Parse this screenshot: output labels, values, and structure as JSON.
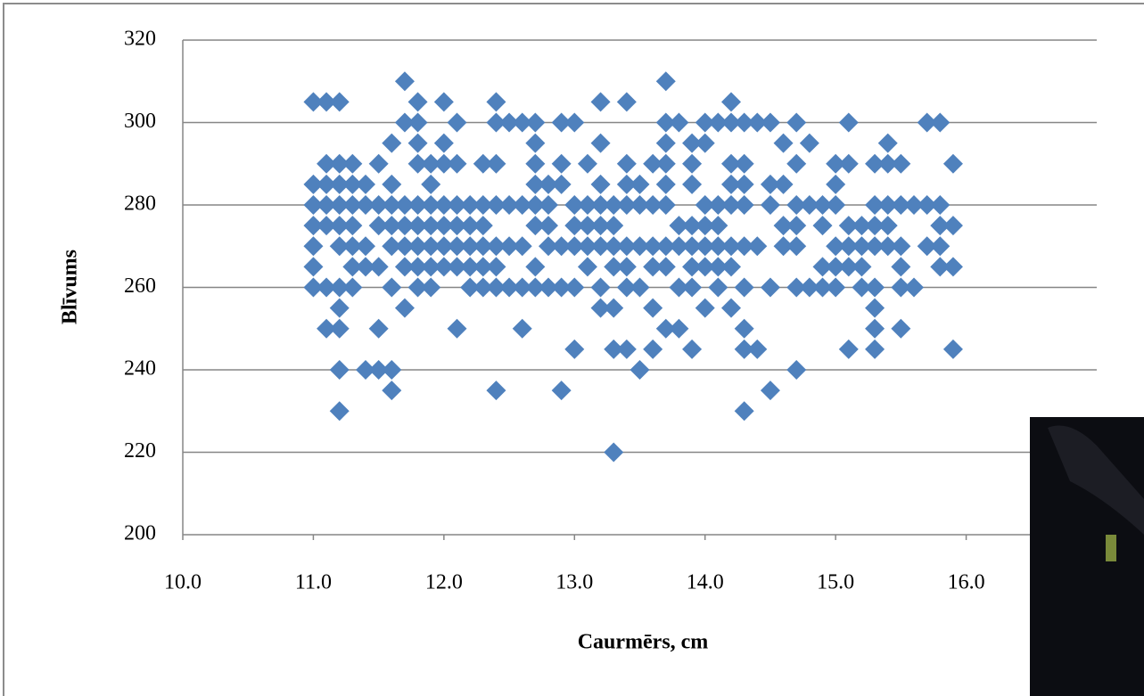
{
  "chart_data": {
    "type": "scatter",
    "x_label": "Caurmērs, cm",
    "y_label": "Blīvums",
    "color": "#4f81bd",
    "grid": true,
    "xlim": [
      10,
      17
    ],
    "ylim": [
      200,
      320
    ],
    "xticks": [
      {
        "value": 10,
        "label": "10.0"
      },
      {
        "value": 11,
        "label": "11.0"
      },
      {
        "value": 12,
        "label": "12.0"
      },
      {
        "value": 13,
        "label": "13.0"
      },
      {
        "value": 14,
        "label": "14.0"
      },
      {
        "value": 15,
        "label": "15.0"
      },
      {
        "value": 16,
        "label": "16.0"
      }
    ],
    "yticks": [
      200,
      220,
      240,
      260,
      280,
      300,
      320
    ],
    "x": [
      11,
      11,
      11,
      11,
      11,
      11,
      11,
      11.1,
      11.1,
      11.1,
      11.1,
      11.1,
      11.1,
      11.1,
      11.2,
      11.2,
      11.2,
      11.2,
      11.2,
      11.2,
      11.2,
      11.2,
      11.2,
      11.2,
      11.2,
      11.3,
      11.3,
      11.3,
      11.3,
      11.3,
      11.3,
      11.3,
      11.4,
      11.4,
      11.4,
      11.4,
      11.4,
      11.5,
      11.5,
      11.5,
      11.5,
      11.5,
      11.5,
      11.6,
      11.6,
      11.6,
      11.6,
      11.6,
      11.6,
      11.6,
      11.6,
      11.7,
      11.7,
      11.7,
      11.7,
      11.7,
      11.7,
      11.7,
      11.8,
      11.8,
      11.8,
      11.8,
      11.8,
      11.8,
      11.8,
      11.8,
      11.8,
      11.9,
      11.9,
      11.9,
      11.9,
      11.9,
      11.9,
      11.9,
      12,
      12,
      12,
      12,
      12,
      12,
      12,
      12.1,
      12.1,
      12.1,
      12.1,
      12.1,
      12.1,
      12.1,
      12.2,
      12.2,
      12.2,
      12.2,
      12.2,
      12.3,
      12.3,
      12.3,
      12.3,
      12.3,
      12.3,
      12.4,
      12.4,
      12.4,
      12.4,
      12.4,
      12.4,
      12.4,
      12.4,
      12.5,
      12.5,
      12.5,
      12.5,
      12.6,
      12.6,
      12.6,
      12.6,
      12.6,
      12.7,
      12.7,
      12.7,
      12.7,
      12.7,
      12.7,
      12.7,
      12.7,
      12.8,
      12.8,
      12.8,
      12.8,
      12.8,
      12.9,
      12.9,
      12.9,
      12.9,
      12.9,
      12.9,
      13,
      13,
      13,
      13,
      13,
      13,
      13.1,
      13.1,
      13.1,
      13.1,
      13.1,
      13.2,
      13.2,
      13.2,
      13.2,
      13.2,
      13.2,
      13.2,
      13.2,
      13.3,
      13.3,
      13.3,
      13.3,
      13.3,
      13.3,
      13.3,
      13.4,
      13.4,
      13.4,
      13.4,
      13.4,
      13.4,
      13.4,
      13.4,
      13.5,
      13.5,
      13.5,
      13.5,
      13.5,
      13.6,
      13.6,
      13.6,
      13.6,
      13.6,
      13.6,
      13.7,
      13.7,
      13.7,
      13.7,
      13.7,
      13.7,
      13.7,
      13.7,
      13.7,
      13.8,
      13.8,
      13.8,
      13.8,
      13.8,
      13.9,
      13.9,
      13.9,
      13.9,
      13.9,
      13.9,
      13.9,
      13.9,
      14,
      14,
      14,
      14,
      14,
      14,
      14,
      14.1,
      14.1,
      14.1,
      14.1,
      14.1,
      14.1,
      14.2,
      14.2,
      14.2,
      14.2,
      14.2,
      14.2,
      14.2,
      14.2,
      14.3,
      14.3,
      14.3,
      14.3,
      14.3,
      14.3,
      14.3,
      14.3,
      14.3,
      14.4,
      14.4,
      14.4,
      14.5,
      14.5,
      14.5,
      14.5,
      14.5,
      14.6,
      14.6,
      14.6,
      14.6,
      14.7,
      14.7,
      14.7,
      14.7,
      14.7,
      14.7,
      14.7,
      14.8,
      14.8,
      14.8,
      14.9,
      14.9,
      14.9,
      14.9,
      15,
      15,
      15,
      15,
      15,
      15,
      15.1,
      15.1,
      15.1,
      15.1,
      15.1,
      15.1,
      15.2,
      15.2,
      15.2,
      15.2,
      15.3,
      15.3,
      15.3,
      15.3,
      15.3,
      15.3,
      15.3,
      15.3,
      15.4,
      15.4,
      15.4,
      15.4,
      15.4,
      15.5,
      15.5,
      15.5,
      15.5,
      15.5,
      15.5,
      15.6,
      15.6,
      15.7,
      15.7,
      15.7,
      15.8,
      15.8,
      15.8,
      15.8,
      15.8,
      15.9,
      15.9,
      15.9,
      15.9
    ],
    "values": [
      305,
      285,
      280,
      275,
      270,
      265,
      260,
      305,
      290,
      285,
      280,
      275,
      260,
      250,
      305,
      290,
      285,
      280,
      275,
      270,
      260,
      255,
      250,
      240,
      230,
      290,
      285,
      280,
      275,
      270,
      265,
      260,
      285,
      280,
      270,
      265,
      240,
      290,
      280,
      275,
      265,
      250,
      240,
      295,
      285,
      280,
      275,
      270,
      260,
      240,
      235,
      310,
      300,
      280,
      275,
      270,
      265,
      255,
      305,
      300,
      295,
      290,
      280,
      275,
      270,
      265,
      260,
      290,
      285,
      280,
      275,
      270,
      265,
      260,
      305,
      295,
      290,
      280,
      275,
      270,
      265,
      300,
      290,
      280,
      275,
      270,
      265,
      250,
      280,
      275,
      270,
      265,
      260,
      290,
      280,
      275,
      270,
      265,
      260,
      305,
      300,
      290,
      280,
      270,
      265,
      260,
      235,
      300,
      280,
      270,
      260,
      300,
      280,
      270,
      260,
      250,
      300,
      295,
      290,
      285,
      280,
      275,
      265,
      260,
      285,
      280,
      275,
      270,
      260,
      300,
      290,
      285,
      270,
      260,
      235,
      300,
      280,
      275,
      270,
      260,
      245,
      290,
      280,
      275,
      270,
      265,
      305,
      295,
      285,
      280,
      275,
      270,
      260,
      255,
      280,
      275,
      270,
      265,
      255,
      245,
      220,
      305,
      290,
      285,
      280,
      270,
      265,
      260,
      245,
      285,
      280,
      270,
      260,
      240,
      290,
      280,
      270,
      265,
      255,
      245,
      310,
      300,
      295,
      290,
      285,
      280,
      270,
      265,
      250,
      300,
      275,
      270,
      260,
      250,
      295,
      290,
      285,
      275,
      270,
      265,
      260,
      245,
      300,
      295,
      280,
      275,
      270,
      265,
      255,
      300,
      280,
      275,
      270,
      265,
      260,
      305,
      300,
      290,
      285,
      280,
      270,
      265,
      255,
      300,
      290,
      285,
      280,
      270,
      260,
      250,
      245,
      230,
      300,
      270,
      245,
      300,
      285,
      280,
      260,
      235,
      295,
      285,
      275,
      270,
      300,
      290,
      280,
      275,
      270,
      260,
      240,
      295,
      280,
      260,
      280,
      275,
      265,
      260,
      290,
      285,
      280,
      270,
      265,
      260,
      300,
      290,
      275,
      270,
      265,
      245,
      275,
      270,
      265,
      260,
      290,
      280,
      275,
      270,
      260,
      255,
      250,
      245,
      295,
      290,
      280,
      275,
      270,
      290,
      280,
      270,
      265,
      260,
      250,
      280,
      260,
      300,
      280,
      270,
      300,
      280,
      275,
      270,
      265,
      290,
      275,
      265,
      245
    ]
  }
}
